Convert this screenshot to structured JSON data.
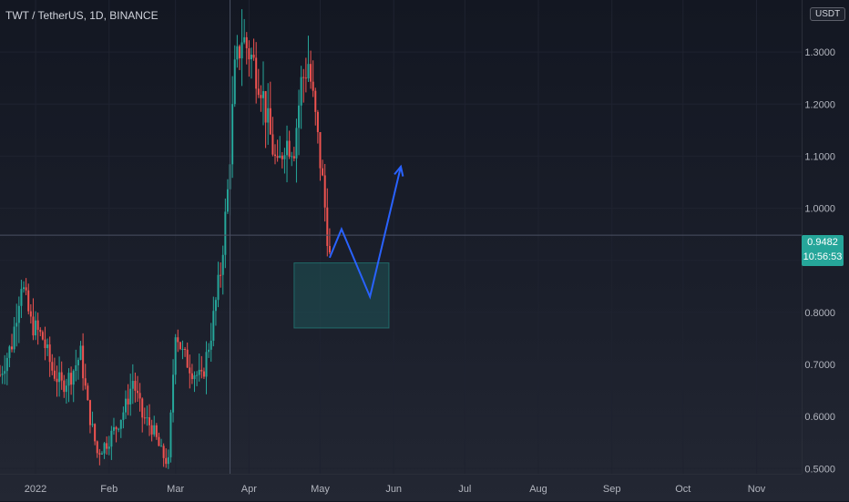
{
  "header": {
    "symbol_title": "TWT / TetherUS, 1D, BINANCE",
    "currency": "USDT"
  },
  "last_price": {
    "value": "0.9482",
    "countdown": "10:56:53"
  },
  "colors": {
    "up": "#26a69a",
    "down": "#ef5350",
    "projection": "#2962ff",
    "zone_fill": "#26a69a",
    "background": "#131722"
  },
  "chart_data": {
    "type": "candlestick",
    "instrument": "TWT / TetherUS",
    "interval": "1D",
    "exchange": "BINANCE",
    "y_ticks": [
      "1.3000",
      "1.2000",
      "1.1000",
      "1.0000",
      "0.9000",
      "0.8000",
      "0.7000",
      "0.6000",
      "0.5000"
    ],
    "y_tick_values": [
      1.3,
      1.2,
      1.1,
      1.0,
      0.9,
      0.8,
      0.7,
      0.6,
      0.5
    ],
    "ylim": [
      0.49,
      1.4
    ],
    "x_ticks": [
      "2022",
      "Feb",
      "Mar",
      "Apr",
      "May",
      "Jun",
      "Jul",
      "Aug",
      "Sep",
      "Oct",
      "Nov"
    ],
    "x_tick_dates": [
      "2022-01-01",
      "2022-02-01",
      "2022-03-01",
      "2022-04-01",
      "2022-05-01",
      "2022-06-01",
      "2022-07-01",
      "2022-08-01",
      "2022-09-01",
      "2022-10-01",
      "2022-11-01"
    ],
    "xlim": [
      "2021-12-17",
      "2022-11-20"
    ],
    "price_path": [
      [
        "2021-12-17",
        0.68
      ],
      [
        "2021-12-22",
        0.74
      ],
      [
        "2021-12-26",
        0.86
      ],
      [
        "2021-12-30",
        0.78
      ],
      [
        "2022-01-04",
        0.75
      ],
      [
        "2022-01-08",
        0.69
      ],
      [
        "2022-01-12",
        0.66
      ],
      [
        "2022-01-16",
        0.68
      ],
      [
        "2022-01-20",
        0.72
      ],
      [
        "2022-01-23",
        0.62
      ],
      [
        "2022-01-27",
        0.53
      ],
      [
        "2022-01-31",
        0.55
      ],
      [
        "2022-02-04",
        0.58
      ],
      [
        "2022-02-08",
        0.62
      ],
      [
        "2022-02-11",
        0.67
      ],
      [
        "2022-02-15",
        0.6
      ],
      [
        "2022-02-19",
        0.58
      ],
      [
        "2022-02-23",
        0.53
      ],
      [
        "2022-02-26",
        0.51
      ],
      [
        "2022-03-01",
        0.77
      ],
      [
        "2022-03-04",
        0.72
      ],
      [
        "2022-03-08",
        0.69
      ],
      [
        "2022-03-12",
        0.67
      ],
      [
        "2022-03-16",
        0.76
      ],
      [
        "2022-03-20",
        0.88
      ],
      [
        "2022-03-23",
        1.03
      ],
      [
        "2022-03-26",
        1.26
      ],
      [
        "2022-03-29",
        1.33
      ],
      [
        "2022-04-02",
        1.29
      ],
      [
        "2022-04-06",
        1.24
      ],
      [
        "2022-04-09",
        1.16
      ],
      [
        "2022-04-13",
        1.07
      ],
      [
        "2022-04-16",
        1.13
      ],
      [
        "2022-04-20",
        1.12
      ],
      [
        "2022-04-23",
        1.24
      ],
      [
        "2022-04-26",
        1.28
      ],
      [
        "2022-04-29",
        1.17
      ],
      [
        "2022-05-02",
        1.05
      ],
      [
        "2022-05-05",
        0.905
      ]
    ],
    "annotations": {
      "demand_zone": {
        "price_top": 0.895,
        "price_bottom": 0.77,
        "date_start": "2022-04-20",
        "date_end": "2022-05-30"
      },
      "projection_path": [
        [
          "2022-05-05",
          0.905
        ],
        [
          "2022-05-10",
          0.96
        ],
        [
          "2022-05-22",
          0.83
        ],
        [
          "2022-06-04",
          1.08
        ]
      ],
      "last_price_line": 0.9482
    },
    "grid": true
  }
}
